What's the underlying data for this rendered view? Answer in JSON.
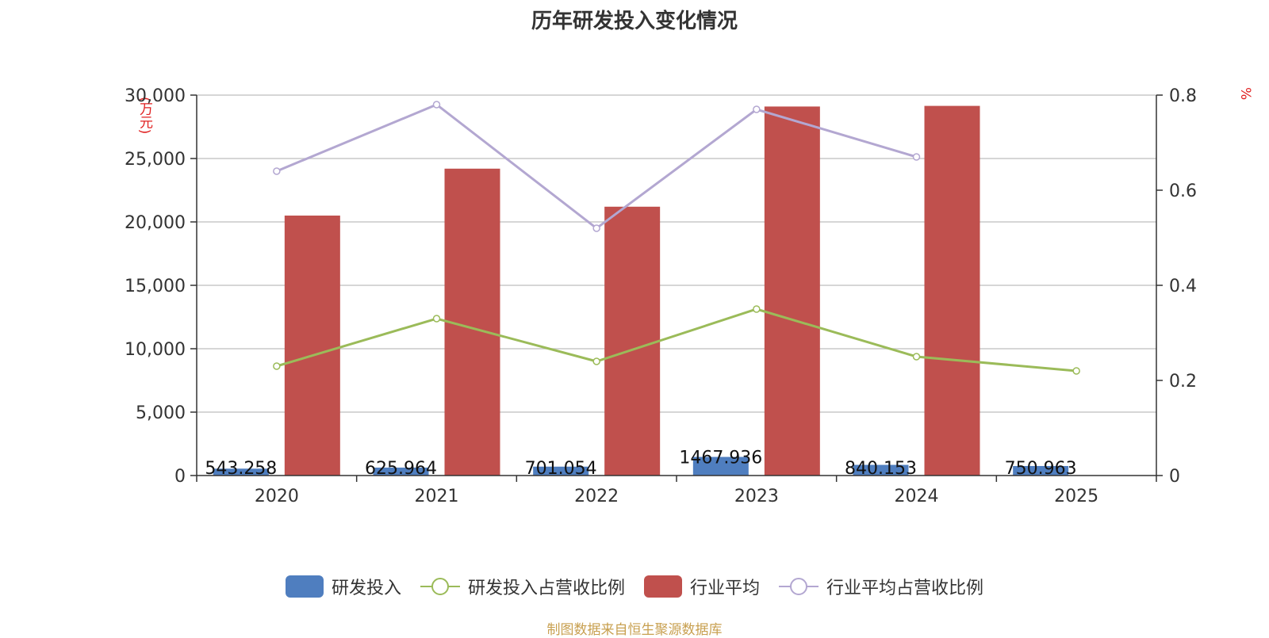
{
  "title": "历年研发投入变化情况",
  "source": "制图数据来自恒生聚源数据库",
  "colors": {
    "rd": "#4f7ebf",
    "rd_ratio": "#9bbb59",
    "industry": "#c0504d",
    "industry_ratio": "#b3a7d1",
    "unit": "#e02020",
    "source": "#c8a050",
    "grid": "#c8c8c8",
    "axis": "#333333"
  },
  "legend": [
    {
      "name": "研发投入",
      "kind": "bar",
      "color_key": "rd"
    },
    {
      "name": "研发投入占营收比例",
      "kind": "line",
      "color_key": "rd_ratio"
    },
    {
      "name": "行业平均",
      "kind": "bar",
      "color_key": "industry"
    },
    {
      "name": "行业平均占营收比例",
      "kind": "line",
      "color_key": "industry_ratio"
    }
  ],
  "chart_data": {
    "type": "bar",
    "title": "历年研发投入变化情况",
    "categories": [
      "2020",
      "2021",
      "2022",
      "2023",
      "2024",
      "2025"
    ],
    "ylabel_left": "(万元)",
    "ylabel_right": "%",
    "ylim_left": [
      0,
      30000
    ],
    "ylim_right": [
      0,
      0.8
    ],
    "yticks_left": [
      "0",
      "5,000",
      "10,000",
      "15,000",
      "20,000",
      "25,000",
      "30,000"
    ],
    "yticks_right": [
      "0",
      "0.2",
      "0.4",
      "0.6",
      "0.8"
    ],
    "grid": true,
    "series": [
      {
        "name": "研发投入",
        "type": "bar",
        "axis": "left",
        "values": [
          543.258,
          625.964,
          701.054,
          1467.936,
          840.153,
          750.963
        ],
        "labels": [
          "543.258",
          "625.964",
          "701.054",
          "1467.936",
          "840.153",
          "750.963"
        ]
      },
      {
        "name": "行业平均",
        "type": "bar",
        "axis": "left",
        "values": [
          20500,
          24200,
          21200,
          29100,
          29150,
          null
        ]
      },
      {
        "name": "研发投入占营收比例",
        "type": "line",
        "axis": "right",
        "values": [
          0.23,
          0.33,
          0.24,
          0.35,
          0.25,
          0.22
        ]
      },
      {
        "name": "行业平均占营收比例",
        "type": "line",
        "axis": "right",
        "values": [
          0.64,
          0.78,
          0.52,
          0.77,
          0.67,
          null
        ]
      }
    ]
  }
}
